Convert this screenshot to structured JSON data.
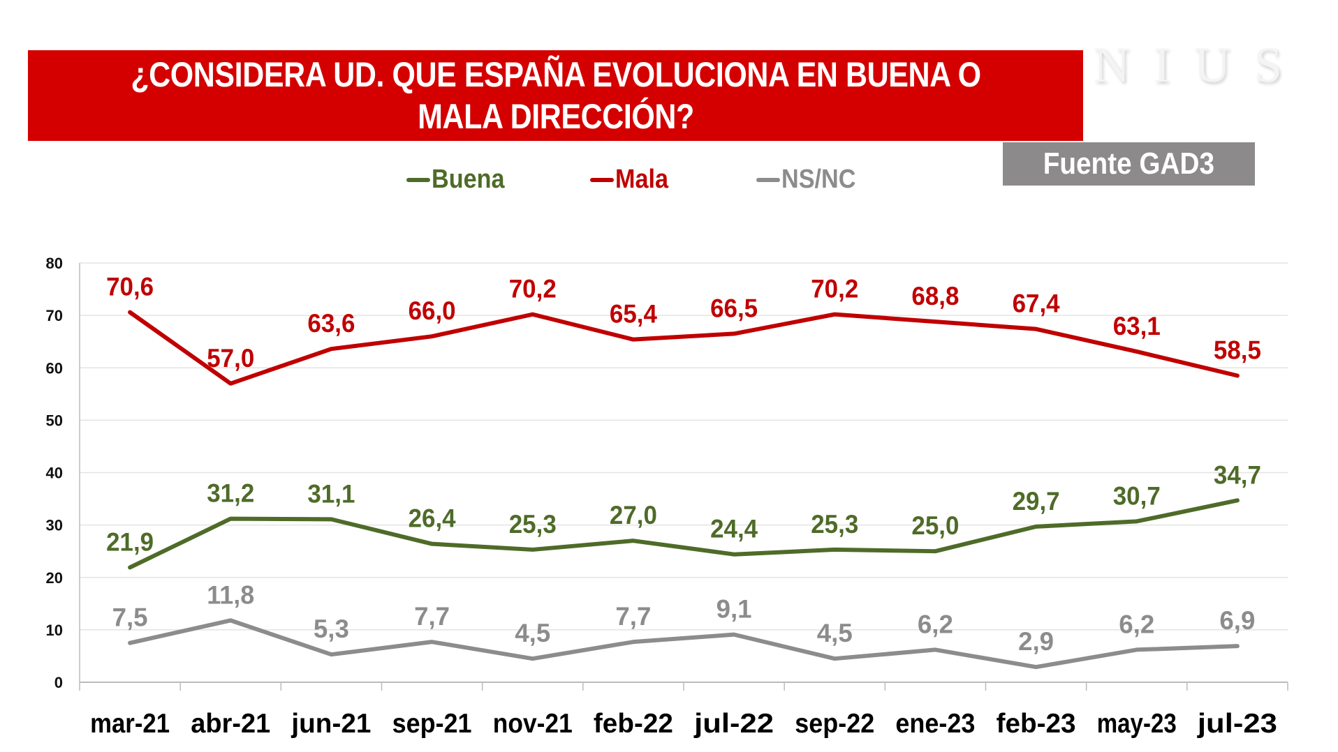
{
  "header": {
    "title": "¿CONSIDERA UD. QUE ESPAÑA EVOLUCIONA EN BUENA O MALA DIRECCIÓN?",
    "logo": "NIUS",
    "source": "Fuente GAD3",
    "banner_color": "#d40000"
  },
  "chart_data": {
    "type": "line",
    "title": "¿CONSIDERA UD. QUE ESPAÑA EVOLUCIONA EN BUENA O MALA DIRECCIÓN?",
    "categories": [
      "mar-21",
      "abr-21",
      "jun-21",
      "sep-21",
      "nov-21",
      "feb-22",
      "jul-22",
      "sep-22",
      "ene-23",
      "feb-23",
      "may-23",
      "jul-23"
    ],
    "ylim": [
      0,
      80
    ],
    "yticks": [
      0,
      10,
      20,
      30,
      40,
      50,
      60,
      70,
      80
    ],
    "grid": true,
    "legend_position": "top",
    "series": [
      {
        "name": "Buena",
        "color": "#4e6b28",
        "values": [
          21.9,
          31.2,
          31.1,
          26.4,
          25.3,
          27.0,
          24.4,
          25.3,
          25.0,
          29.7,
          30.7,
          34.7
        ],
        "labels": [
          "21,9",
          "31,2",
          "31,1",
          "26,4",
          "25,3",
          "27,0",
          "24,4",
          "25,3",
          "25,0",
          "29,7",
          "30,7",
          "34,7"
        ]
      },
      {
        "name": "Mala",
        "color": "#c00000",
        "values": [
          70.6,
          57.0,
          63.6,
          66.0,
          70.2,
          65.4,
          66.5,
          70.2,
          68.8,
          67.4,
          63.1,
          58.5
        ],
        "labels": [
          "70,6",
          "57,0",
          "63,6",
          "66,0",
          "70,2",
          "65,4",
          "66,5",
          "70,2",
          "68,8",
          "67,4",
          "63,1",
          "58,5"
        ]
      },
      {
        "name": "NS/NC",
        "color": "#8c8c8c",
        "values": [
          7.5,
          11.8,
          5.3,
          7.7,
          4.5,
          7.7,
          9.1,
          4.5,
          6.2,
          2.9,
          6.2,
          6.9
        ],
        "labels": [
          "7,5",
          "11,8",
          "5,3",
          "7,7",
          "4,5",
          "7,7",
          "9,1",
          "4,5",
          "6,2",
          "2,9",
          "6,2",
          "6,9"
        ]
      }
    ]
  }
}
